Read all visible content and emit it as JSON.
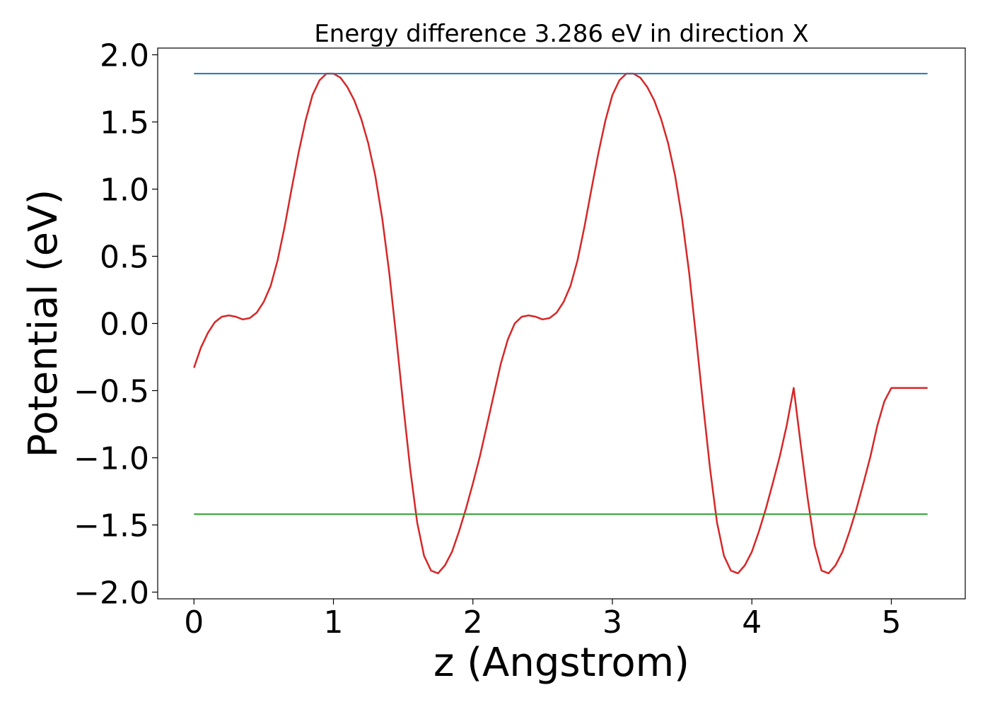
{
  "chart_data": {
    "type": "line",
    "title": "Energy difference 3.286 eV in direction X",
    "xlabel": "z (Angstrom)",
    "ylabel": "Potential (eV)",
    "xlim": [
      -0.26,
      5.53
    ],
    "ylim": [
      -2.05,
      2.05
    ],
    "xticks": [
      0,
      1,
      2,
      3,
      4,
      5
    ],
    "xtick_labels": [
      "0",
      "1",
      "2",
      "3",
      "4",
      "5"
    ],
    "yticks": [
      -2.0,
      -1.5,
      -1.0,
      -0.5,
      0.0,
      0.5,
      1.0,
      1.5,
      2.0
    ],
    "ytick_labels": [
      "−2.0",
      "−1.5",
      "−1.0",
      "−0.5",
      "0.0",
      "0.5",
      "1.0",
      "1.5",
      "2.0"
    ],
    "grid": false,
    "series": [
      {
        "color": "#d62728",
        "x": [
          0.0,
          0.05,
          0.1,
          0.15,
          0.2,
          0.25,
          0.3,
          0.35,
          0.4,
          0.45,
          0.5,
          0.55,
          0.6,
          0.65,
          0.7,
          0.75,
          0.8,
          0.85,
          0.9,
          0.95,
          1.0,
          1.05,
          1.1,
          1.15,
          1.2,
          1.25,
          1.3,
          1.35,
          1.4,
          1.45,
          1.5,
          1.55,
          1.6,
          1.65,
          1.7,
          1.75,
          1.8,
          1.85,
          1.9,
          1.95,
          2.0,
          2.05,
          2.1,
          2.15,
          2.2,
          2.25,
          2.3,
          2.35,
          2.4,
          2.45,
          2.5,
          2.55,
          2.6,
          2.65,
          2.7,
          2.75,
          2.8,
          2.85,
          2.9,
          2.95,
          3.0,
          3.05,
          3.1,
          3.15,
          3.2,
          3.25,
          3.3,
          3.35,
          3.4,
          3.45,
          3.5,
          3.55,
          3.6,
          3.65,
          3.7,
          3.75,
          3.8,
          3.85,
          3.9,
          3.95,
          4.0,
          4.05,
          4.1,
          4.15,
          4.2,
          4.25,
          4.3,
          4.35,
          4.4,
          4.45,
          4.5,
          4.55,
          4.6,
          4.65,
          4.7,
          4.75,
          4.8,
          4.85,
          4.9,
          4.95,
          5.0,
          5.05,
          5.1,
          5.15,
          5.2,
          5.26
        ],
        "values": [
          -0.33,
          -0.18,
          -0.07,
          0.01,
          0.05,
          0.06,
          0.05,
          0.03,
          0.04,
          0.08,
          0.16,
          0.28,
          0.47,
          0.72,
          1.0,
          1.27,
          1.51,
          1.7,
          1.81,
          1.86,
          1.86,
          1.83,
          1.76,
          1.66,
          1.52,
          1.34,
          1.1,
          0.78,
          0.38,
          -0.1,
          -0.6,
          -1.08,
          -1.48,
          -1.73,
          -1.84,
          -1.86,
          -1.8,
          -1.7,
          -1.55,
          -1.38,
          -1.19,
          -0.99,
          -0.76,
          -0.53,
          -0.3,
          -0.12,
          0.0,
          0.05,
          0.06,
          0.05,
          0.03,
          0.04,
          0.08,
          0.16,
          0.28,
          0.47,
          0.72,
          1.0,
          1.27,
          1.51,
          1.7,
          1.81,
          1.86,
          1.86,
          1.83,
          1.76,
          1.66,
          1.52,
          1.34,
          1.1,
          0.78,
          0.38,
          -0.1,
          -0.6,
          -1.08,
          -1.48,
          -1.73,
          -1.84,
          -1.86,
          -1.8,
          -1.7,
          -1.55,
          -1.38,
          -1.19,
          -0.99,
          -0.76,
          -0.48,
          -0.9,
          -1.3,
          -1.65,
          -1.84,
          -1.86,
          -1.8,
          -1.7,
          -1.55,
          -1.38,
          -1.19,
          -0.99,
          -0.76,
          -0.58,
          -0.48,
          -0.48,
          -0.48,
          -0.48,
          -0.48,
          -0.48
        ]
      },
      {
        "color": "#1f77b4",
        "x": [
          0.0,
          5.26
        ],
        "values": [
          1.86,
          1.86
        ]
      },
      {
        "color": "#2ca02c",
        "x": [
          0.0,
          5.26
        ],
        "values": [
          -1.42,
          -1.42
        ]
      }
    ]
  }
}
